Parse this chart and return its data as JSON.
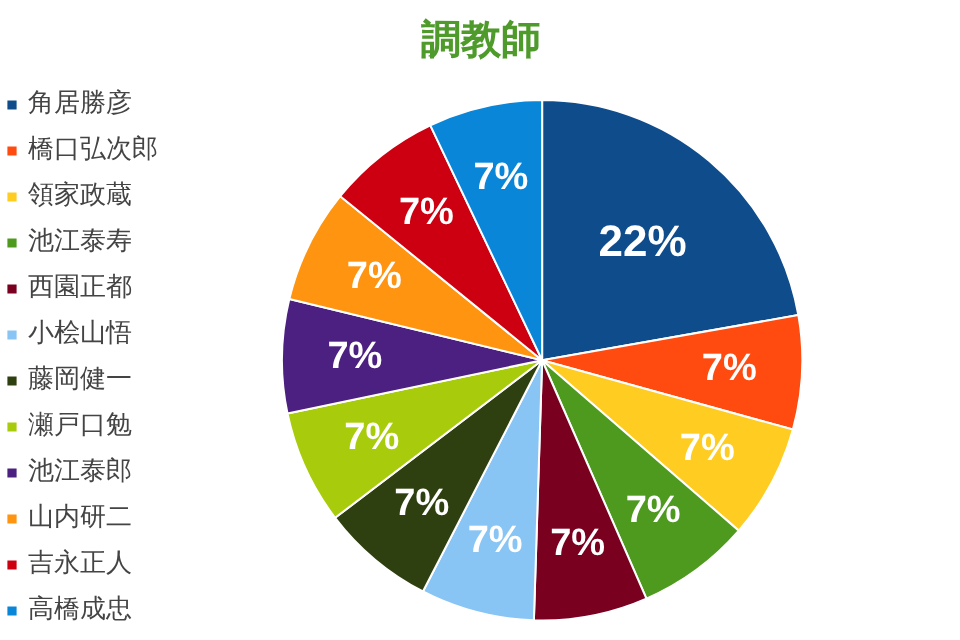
{
  "chart_data": {
    "type": "pie",
    "title": "調教師",
    "categories": [
      "角居勝彦",
      "橋口弘次郎",
      "領家政蔵",
      "池江泰寿",
      "西園正都",
      "小桧山悟",
      "藤岡健一",
      "瀬戸口勉",
      "池江泰郎",
      "山内研二",
      "吉永正人",
      "高橋成忠"
    ],
    "values": [
      22,
      7,
      7,
      7,
      7,
      7,
      7,
      7,
      7,
      7,
      7,
      7
    ],
    "value_labels": [
      "22%",
      "7%",
      "7%",
      "7%",
      "7%",
      "7%",
      "7%",
      "7%",
      "7%",
      "7%",
      "7%",
      "7%"
    ],
    "colors": [
      "#0f4c8c",
      "#ff4b10",
      "#ffcc22",
      "#4e9a1f",
      "#7a0020",
      "#88c4f4",
      "#2f4010",
      "#a8cc0c",
      "#4c2080",
      "#ff9410",
      "#cc0010",
      "#0a86d8"
    ],
    "legend": "left"
  }
}
